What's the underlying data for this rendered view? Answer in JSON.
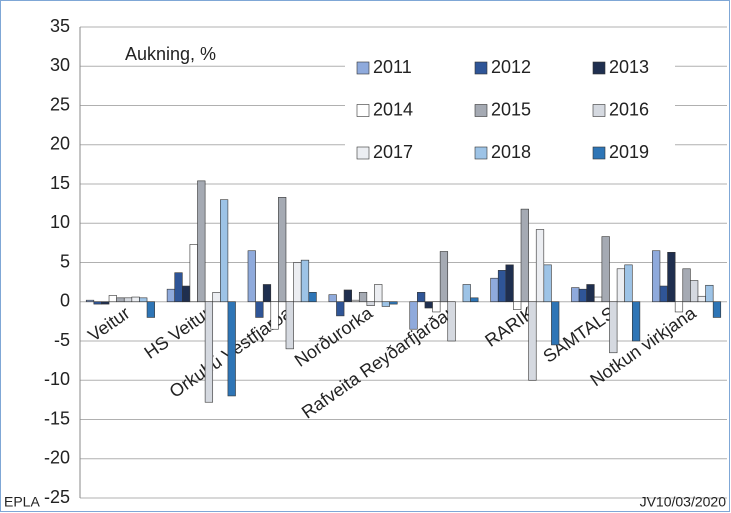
{
  "chart_data": {
    "type": "bar",
    "annotation": "Aukning, %",
    "source_left": "EPLA",
    "source_right": "JV10/03/2020",
    "categories": [
      "Veitur",
      "HS Veitur",
      "Orkubú Vestfjarða",
      "Norðurorka",
      "Rafveita Reyðarfjarðar",
      "RARIK",
      "SAMTALS",
      "Notkun virkjana"
    ],
    "series": [
      {
        "name": "2011",
        "color": "#8faadc",
        "values": [
          0.2,
          1.6,
          6.5,
          0.9,
          -3.5,
          3.0,
          1.8,
          6.5
        ]
      },
      {
        "name": "2012",
        "color": "#2f5597",
        "values": [
          -0.3,
          3.7,
          -2.0,
          -1.8,
          1.2,
          4.0,
          1.6,
          2.0
        ]
      },
      {
        "name": "2013",
        "color": "#1f2f4f",
        "values": [
          -0.3,
          2.0,
          2.2,
          1.5,
          -0.8,
          4.7,
          2.2,
          6.3
        ]
      },
      {
        "name": "2014",
        "color": "#ffffff",
        "values": [
          0.8,
          7.3,
          -3.5,
          0.2,
          -1.3,
          -1.0,
          0.6,
          -1.3
        ]
      },
      {
        "name": "2015",
        "color": "#a5aab3",
        "values": [
          0.5,
          15.4,
          13.3,
          1.2,
          6.4,
          11.8,
          8.3,
          4.2
        ]
      },
      {
        "name": "2016",
        "color": "#d5d9e0",
        "values": [
          0.5,
          -12.8,
          -6.0,
          -0.5,
          -5.0,
          -10.0,
          -6.5,
          2.7
        ]
      },
      {
        "name": "2017",
        "color": "#eceef2",
        "values": [
          0.6,
          1.2,
          5.0,
          2.2,
          0,
          9.2,
          4.2,
          0.7
        ]
      },
      {
        "name": "2018",
        "color": "#9dc3e6",
        "values": [
          0.5,
          13.0,
          5.3,
          -0.6,
          2.2,
          4.7,
          4.7,
          2.1
        ]
      },
      {
        "name": "2019",
        "color": "#2e75b6",
        "values": [
          -2.0,
          -12.0,
          1.2,
          -0.3,
          0.5,
          -5.5,
          -5.0,
          -2.0
        ]
      }
    ],
    "ylim": [
      -25,
      35
    ],
    "yticks": [
      -25,
      -20,
      -15,
      -10,
      -5,
      0,
      5,
      10,
      15,
      20,
      25,
      30,
      35
    ],
    "grid": true
  }
}
